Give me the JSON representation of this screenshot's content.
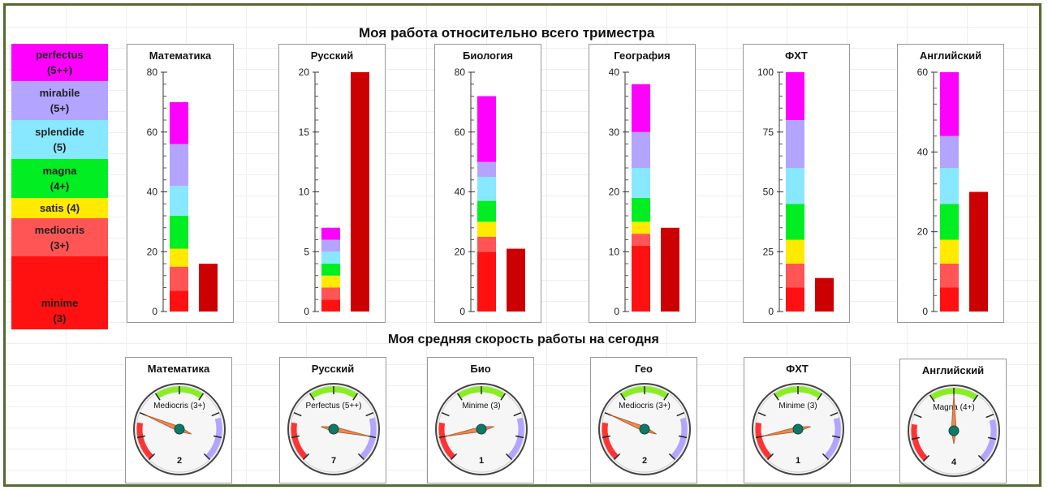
{
  "top_title": "Моя работа относительно всего триместра",
  "bottom_title": "Моя средняя скорость работы на сегодня",
  "legend": [
    {
      "line1": "perfectus",
      "line2": "(5++)",
      "color": "#ff00ff"
    },
    {
      "line1": "mirabile",
      "line2": "(5+)",
      "color": "#b3a4ff"
    },
    {
      "line1": "splendide",
      "line2": "(5)",
      "color": "#88e8ff"
    },
    {
      "line1": "magna",
      "line2": "(4+)",
      "color": "#00ee22"
    },
    {
      "line1": "satis (4)",
      "line2": "",
      "color": "#ffea00"
    },
    {
      "line1": "mediocris",
      "line2": "(3+)",
      "color": "#ff5555"
    },
    {
      "line1": "minime",
      "line2": "(3)",
      "color": "#ff1111"
    }
  ],
  "chart_data": [
    {
      "type": "bar",
      "title": "Математика",
      "ylim": [
        0,
        80
      ],
      "ticks": [
        0,
        20,
        40,
        60,
        80
      ],
      "stacked_series": [
        7,
        8,
        6,
        11,
        10,
        14,
        14
      ],
      "value": 16
    },
    {
      "type": "bar",
      "title": "Русский",
      "ylim": [
        0,
        20
      ],
      "ticks": [
        0,
        5,
        10,
        15,
        20
      ],
      "stacked_series": [
        1,
        1,
        1,
        1,
        1,
        1,
        1
      ],
      "value": 20
    },
    {
      "type": "bar",
      "title": "Биология",
      "ylim": [
        0,
        80
      ],
      "ticks": [
        0,
        20,
        40,
        60,
        80
      ],
      "stacked_series": [
        20,
        5,
        5,
        7,
        8,
        5,
        22
      ],
      "value": 21
    },
    {
      "type": "bar",
      "title": "География",
      "ylim": [
        0,
        40
      ],
      "ticks": [
        0,
        10,
        20,
        30,
        40
      ],
      "stacked_series": [
        11,
        2,
        2,
        4,
        5,
        6,
        8
      ],
      "value": 14
    },
    {
      "type": "bar",
      "title": "ФХТ",
      "ylim": [
        0,
        100
      ],
      "ticks": [
        0,
        25,
        50,
        75,
        100
      ],
      "stacked_series": [
        10,
        10,
        10,
        15,
        15,
        20,
        20
      ],
      "value": 14
    },
    {
      "type": "bar",
      "title": "Английский",
      "ylim": [
        0,
        60
      ],
      "ticks": [
        0,
        20,
        40,
        60
      ],
      "stacked_series": [
        6,
        6,
        6,
        9,
        9,
        8,
        16
      ],
      "value": 30
    }
  ],
  "gauges": [
    {
      "title": "Математика",
      "label": "Mediocris (3+)",
      "value": 2
    },
    {
      "title": "Русский",
      "label": "Perfectus (5++)",
      "value": 7
    },
    {
      "title": "Био",
      "label": "Minime (3)",
      "value": 1
    },
    {
      "title": "Гео",
      "label": "Mediocris (3+)",
      "value": 2
    },
    {
      "title": "ФХТ",
      "label": "Minime (3)",
      "value": 1
    },
    {
      "title": "Английский",
      "label": "Magna (4+)",
      "value": 4
    }
  ],
  "colors": {
    "second_bar": "#cc0000",
    "gauge_red": "#ff3333",
    "gauge_green": "#88ee22",
    "gauge_purple": "#b3a4ff",
    "needle": "#ee8855",
    "hub": "#117766"
  }
}
